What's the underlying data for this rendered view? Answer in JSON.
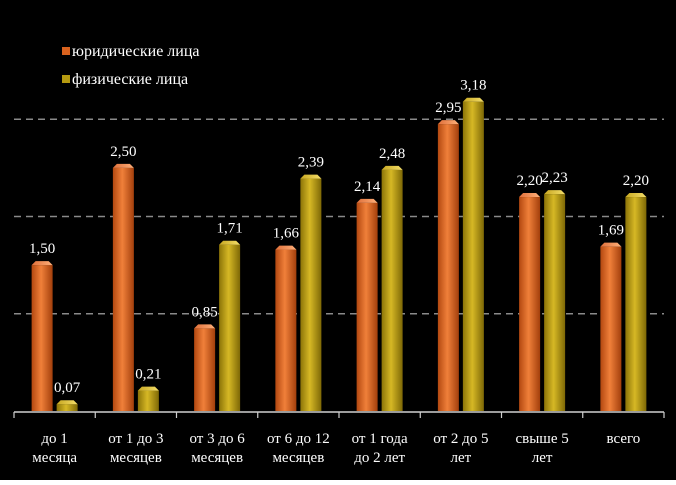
{
  "chart_data": {
    "type": "bar",
    "categories": [
      [
        "до 1",
        "месяца"
      ],
      [
        "от 1 до 3",
        "месяцев"
      ],
      [
        "от 3 до 6",
        "месяцев"
      ],
      [
        "от 6 до 12",
        "месяцев"
      ],
      [
        "от 1 года",
        "до 2 лет"
      ],
      [
        "от 2 до 5",
        "лет"
      ],
      [
        "свыше 5",
        "лет"
      ],
      [
        "всего"
      ]
    ],
    "series": [
      {
        "name": "юридические лица",
        "values": [
          1.5,
          2.5,
          0.85,
          1.66,
          2.14,
          2.95,
          2.2,
          1.69
        ],
        "labels": [
          "1,50",
          "2,50",
          "0,85",
          "1,66",
          "2,14",
          "2,95",
          "2,20",
          "1,69"
        ],
        "color": "#d9621e"
      },
      {
        "name": "физические лица",
        "values": [
          0.07,
          0.21,
          1.71,
          2.39,
          2.48,
          3.18,
          2.23,
          2.2
        ],
        "labels": [
          "0,07",
          "0,21",
          "1,71",
          "2,39",
          "2,48",
          "3,18",
          "2,23",
          "2,20"
        ],
        "color": "#b59a10"
      }
    ],
    "title": "",
    "xlabel": "",
    "ylabel": "",
    "ylim": [
      0,
      4
    ],
    "grid": true,
    "legend": "top-left",
    "background": "#000000",
    "text_color": "#ffffff"
  }
}
